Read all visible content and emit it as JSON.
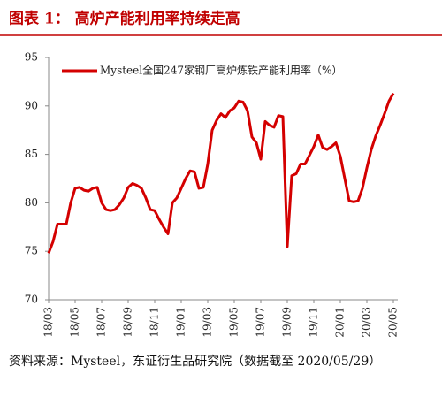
{
  "chart_data": {
    "type": "line",
    "title": "图表 1：   高炉产能利用率持续走高",
    "source": "资料来源：Mysteel，东证衍生品研究院（数据截至 2020/05/29）",
    "categories": [
      "18/03",
      null,
      null,
      null,
      null,
      null,
      "18/05",
      null,
      null,
      null,
      null,
      null,
      "18/07",
      null,
      null,
      null,
      null,
      null,
      "18/09",
      null,
      null,
      null,
      null,
      null,
      "18/11",
      null,
      null,
      null,
      null,
      null,
      "19/01",
      null,
      null,
      null,
      null,
      null,
      "19/03",
      null,
      null,
      null,
      null,
      null,
      "19/05",
      null,
      null,
      null,
      null,
      null,
      "19/07",
      null,
      null,
      null,
      null,
      null,
      "19/09",
      null,
      null,
      null,
      null,
      null,
      "19/11",
      null,
      null,
      null,
      null,
      null,
      "20/01",
      null,
      null,
      null,
      null,
      null,
      "20/03",
      null,
      null,
      null,
      null,
      null,
      "20/05"
    ],
    "series": [
      {
        "name": "Mysteel全国247家钢厂高炉炼铁产能利用率（%）",
        "color": "#d40000",
        "values": [
          74.8,
          76,
          77.8,
          77.8,
          77.8,
          80,
          81.5,
          81.6,
          81.3,
          81.2,
          81.5,
          81.6,
          80,
          79.3,
          79.2,
          79.3,
          79.8,
          80.5,
          81.6,
          82,
          81.8,
          81.5,
          80.5,
          79.3,
          79.2,
          78.3,
          77.5,
          76.8,
          80,
          80.5,
          81.5,
          82.5,
          83.3,
          83.2,
          81.5,
          81.6,
          84,
          87.5,
          88.5,
          89.2,
          88.8,
          89.5,
          89.8,
          90.5,
          90.4,
          89.5,
          86.8,
          86.2,
          84.5,
          88.4,
          88,
          87.8,
          89,
          88.9,
          75.5,
          82.8,
          83,
          84,
          84,
          84.9,
          85.8,
          87,
          85.7,
          85.5,
          85.8,
          86.2,
          84.8,
          82.5,
          80.2,
          80.1,
          80.2,
          81.5,
          83.6,
          85.5,
          86.9,
          88,
          89.2,
          90.5,
          91.3
        ]
      }
    ],
    "ylim": [
      70,
      95
    ],
    "yticks": [
      70,
      75,
      80,
      85,
      90,
      95
    ],
    "grid": false,
    "legend": "top-left"
  }
}
